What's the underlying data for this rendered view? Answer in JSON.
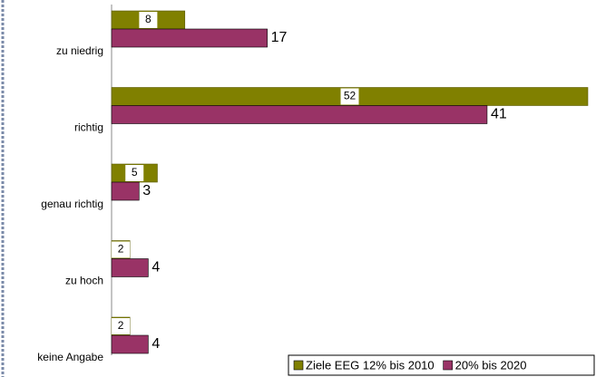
{
  "chart_data": {
    "type": "bar",
    "orientation": "horizontal",
    "categories": [
      "zu niedrig",
      "richtig",
      "genau richtig",
      "zu hoch",
      "keine Angabe"
    ],
    "series": [
      {
        "name": "Ziele EEG 12% bis 2010",
        "color": "#808000",
        "values": [
          8,
          52,
          5,
          2,
          2
        ]
      },
      {
        "name": "20% bis 2020",
        "color": "#993366",
        "values": [
          17,
          41,
          3,
          4,
          4
        ]
      }
    ],
    "legend": "bottom-right"
  }
}
